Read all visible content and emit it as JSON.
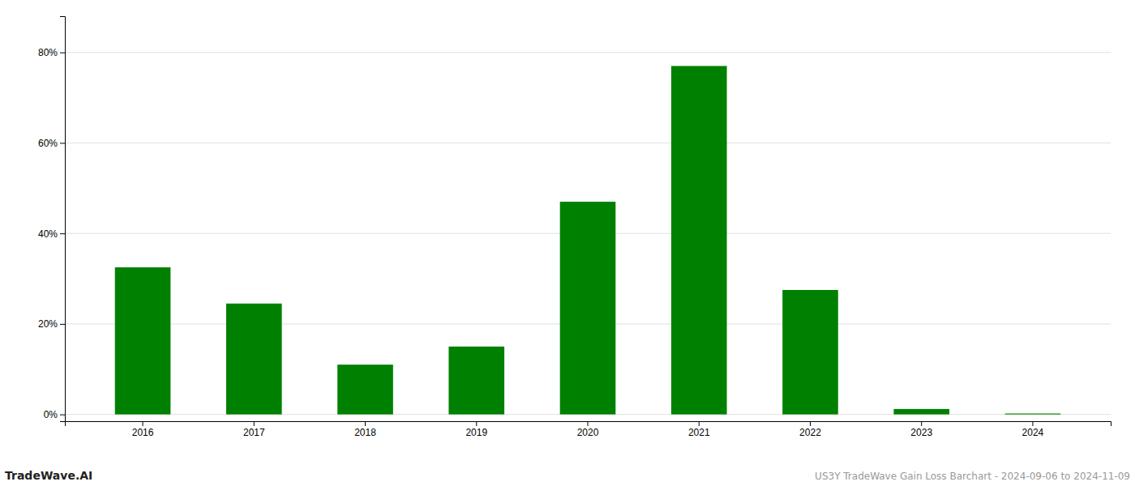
{
  "chart_data": {
    "type": "bar",
    "categories": [
      "2016",
      "2017",
      "2018",
      "2019",
      "2020",
      "2021",
      "2022",
      "2023",
      "2024"
    ],
    "values": [
      0.325,
      0.245,
      0.11,
      0.15,
      0.47,
      0.77,
      0.275,
      0.012,
      0.002
    ],
    "color": "#008000",
    "ylim": [
      -0.015,
      0.88
    ],
    "yticks": [
      {
        "value": 0.0,
        "label": "0%"
      },
      {
        "value": 0.2,
        "label": "20%"
      },
      {
        "value": 0.4,
        "label": "40%"
      },
      {
        "value": 0.6,
        "label": "60%"
      },
      {
        "value": 0.8,
        "label": "80%"
      }
    ],
    "grid": true,
    "annotations": [
      "TradeWave.AI",
      "US3Y TradeWave Gain Loss Barchart - 2024-09-06 to 2024-11-09"
    ]
  }
}
